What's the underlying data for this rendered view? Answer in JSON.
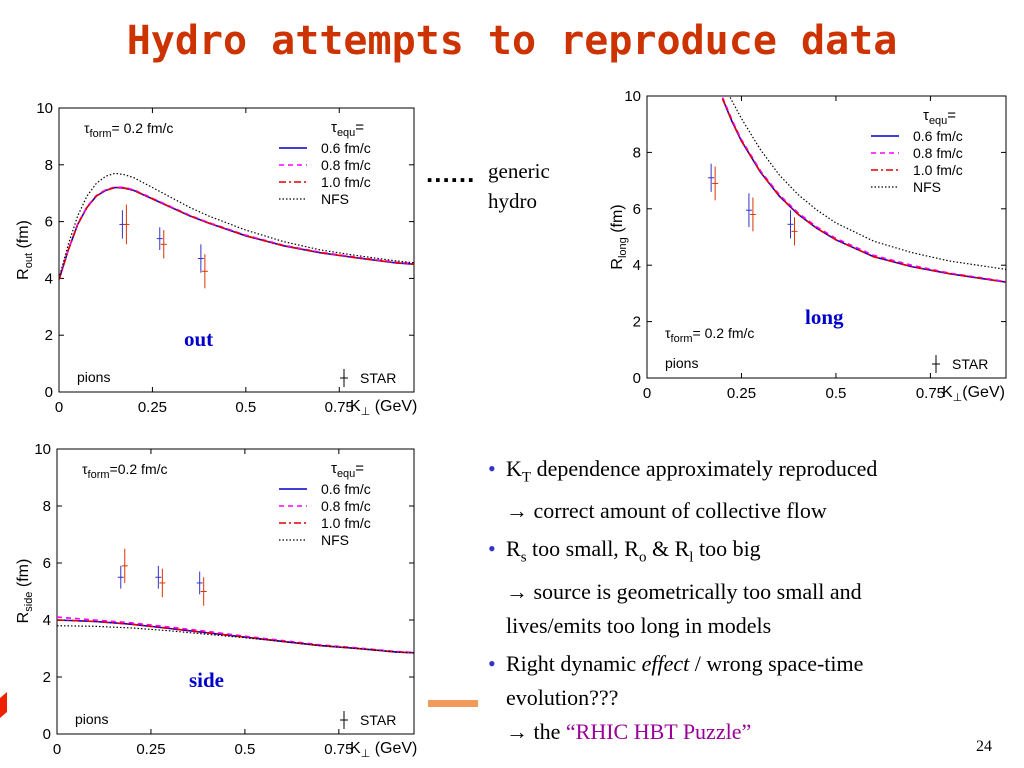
{
  "slide": {
    "title": "Hydro attempts to reproduce data",
    "generic_dots": "......",
    "generic_line1": "generic",
    "generic_line2": "hydro",
    "page_number": "24",
    "bullets": [
      {
        "a": "K",
        "a_sub": "T",
        "b": " dependence approximately reproduced",
        "line2": "→ correct amount of collective flow"
      },
      {
        "a": "R",
        "a_sub": "s",
        "b": " too small, R",
        "b_sub": "o",
        "c": " & R",
        "c_sub": "l",
        "d": " too big",
        "line2": "→ source is geometrically too small and",
        "line3": "lives/emits too long in models"
      },
      {
        "a": "Right dynamic ",
        "em": "effect",
        "b": " / wrong space-time",
        "line2": "evolution???",
        "line3_pre": "→ the ",
        "line3_quote": "“RHIC HBT Puzzle”"
      }
    ]
  },
  "chart_data": [
    {
      "type": "line",
      "panel": "out",
      "xlabel": "K⊥ (GeV)",
      "ylabel": "Rout (fm)",
      "xlim": [
        0,
        0.95
      ],
      "ylim": [
        0,
        10
      ],
      "x_ticks": [
        "0",
        "0.25",
        "0.5",
        "0.75"
      ],
      "y_ticks": [
        "0",
        "2",
        "4",
        "6",
        "8",
        "10"
      ],
      "tau_form_label": "τform= 0.2 fm/c",
      "tau_equ_label": "τequ=",
      "particle_label": "pions",
      "star_label": "STAR",
      "panel_label": "out",
      "legend_position": "top-right",
      "series": [
        {
          "name": "0.6 fm/c",
          "x": [
            0,
            0.025,
            0.05,
            0.075,
            0.1,
            0.125,
            0.15,
            0.175,
            0.2,
            0.25,
            0.3,
            0.35,
            0.4,
            0.5,
            0.6,
            0.7,
            0.8,
            0.9,
            0.95
          ],
          "y": [
            3.95,
            5.0,
            5.9,
            6.5,
            6.9,
            7.1,
            7.2,
            7.18,
            7.1,
            6.8,
            6.5,
            6.2,
            5.95,
            5.5,
            5.15,
            4.9,
            4.72,
            4.55,
            4.5
          ]
        },
        {
          "name": "0.8 fm/c",
          "x": [
            0,
            0.025,
            0.05,
            0.075,
            0.1,
            0.125,
            0.15,
            0.175,
            0.2,
            0.25,
            0.3,
            0.35,
            0.4,
            0.5,
            0.6,
            0.7,
            0.8,
            0.9,
            0.95
          ],
          "y": [
            3.95,
            5.0,
            5.92,
            6.52,
            6.92,
            7.12,
            7.22,
            7.2,
            7.12,
            6.82,
            6.52,
            6.22,
            5.97,
            5.52,
            5.17,
            4.92,
            4.74,
            4.57,
            4.52
          ]
        },
        {
          "name": "1.0 fm/c",
          "x": [
            0,
            0.025,
            0.05,
            0.075,
            0.1,
            0.125,
            0.15,
            0.175,
            0.2,
            0.25,
            0.3,
            0.35,
            0.4,
            0.5,
            0.6,
            0.7,
            0.8,
            0.9,
            0.95
          ],
          "y": [
            3.95,
            5.0,
            5.9,
            6.5,
            6.9,
            7.1,
            7.2,
            7.18,
            7.1,
            6.8,
            6.5,
            6.2,
            5.95,
            5.5,
            5.15,
            4.9,
            4.72,
            4.55,
            4.5
          ]
        },
        {
          "name": "NFS",
          "x": [
            0,
            0.025,
            0.05,
            0.075,
            0.1,
            0.125,
            0.15,
            0.175,
            0.2,
            0.25,
            0.3,
            0.35,
            0.4,
            0.5,
            0.6,
            0.7,
            0.8,
            0.9,
            0.95
          ],
          "y": [
            4.0,
            5.2,
            6.2,
            6.9,
            7.35,
            7.6,
            7.7,
            7.65,
            7.55,
            7.2,
            6.85,
            6.5,
            6.2,
            5.7,
            5.3,
            5.0,
            4.8,
            4.62,
            4.55
          ]
        }
      ],
      "data_points": [
        {
          "x": 0.175,
          "blue": 5.9,
          "blue_err": 0.5,
          "red": 5.9,
          "red_err": 0.7
        },
        {
          "x": 0.275,
          "blue": 5.4,
          "blue_err": 0.4,
          "red": 5.2,
          "red_err": 0.5
        },
        {
          "x": 0.385,
          "blue": 4.7,
          "blue_err": 0.5,
          "red": 4.25,
          "red_err": 0.6
        }
      ]
    },
    {
      "type": "line",
      "panel": "long",
      "xlabel": "K⊥(GeV)",
      "ylabel": "Rlong (fm)",
      "xlim": [
        0,
        0.95
      ],
      "ylim": [
        0,
        10
      ],
      "x_ticks": [
        "0",
        "0.25",
        "0.5",
        "0.75"
      ],
      "y_ticks": [
        "0",
        "2",
        "4",
        "6",
        "8",
        "10"
      ],
      "tau_form_label": "τform= 0.2 fm/c",
      "tau_equ_label": "τequ=",
      "particle_label": "pions",
      "star_label": "STAR",
      "panel_label": "long",
      "legend_position": "top-right",
      "series": [
        {
          "name": "0.6 fm/c",
          "x": [
            0.2,
            0.225,
            0.25,
            0.3,
            0.35,
            0.4,
            0.45,
            0.5,
            0.6,
            0.7,
            0.8,
            0.9,
            0.95
          ],
          "y": [
            9.9,
            9.1,
            8.4,
            7.3,
            6.45,
            5.8,
            5.3,
            4.9,
            4.3,
            3.95,
            3.7,
            3.5,
            3.4
          ]
        },
        {
          "name": "0.8 fm/c",
          "x": [
            0.2,
            0.225,
            0.25,
            0.3,
            0.35,
            0.4,
            0.45,
            0.5,
            0.6,
            0.7,
            0.8,
            0.9,
            0.95
          ],
          "y": [
            9.95,
            9.15,
            8.45,
            7.35,
            6.5,
            5.85,
            5.35,
            4.95,
            4.35,
            4.0,
            3.72,
            3.52,
            3.42
          ]
        },
        {
          "name": "1.0 fm/c",
          "x": [
            0.2,
            0.225,
            0.25,
            0.3,
            0.35,
            0.4,
            0.45,
            0.5,
            0.6,
            0.7,
            0.8,
            0.9,
            0.95
          ],
          "y": [
            9.9,
            9.1,
            8.4,
            7.3,
            6.45,
            5.8,
            5.3,
            4.9,
            4.3,
            3.95,
            3.7,
            3.5,
            3.4
          ]
        },
        {
          "name": "NFS",
          "x": [
            0.22,
            0.25,
            0.3,
            0.35,
            0.4,
            0.45,
            0.5,
            0.6,
            0.7,
            0.8,
            0.9,
            0.95
          ],
          "y": [
            9.95,
            9.2,
            8.1,
            7.2,
            6.5,
            5.95,
            5.5,
            4.85,
            4.45,
            4.15,
            3.95,
            3.85
          ]
        }
      ],
      "data_points": [
        {
          "x": 0.175,
          "blue": 7.1,
          "blue_err": 0.5,
          "red": 6.9,
          "red_err": 0.6
        },
        {
          "x": 0.275,
          "blue": 5.95,
          "blue_err": 0.6,
          "red": 5.8,
          "red_err": 0.6
        },
        {
          "x": 0.385,
          "blue": 5.45,
          "blue_err": 0.5,
          "red": 5.2,
          "red_err": 0.5
        }
      ]
    },
    {
      "type": "line",
      "panel": "side",
      "xlabel": "K⊥ (GeV)",
      "ylabel": "Rside (fm)",
      "xlim": [
        0,
        0.95
      ],
      "ylim": [
        0,
        10
      ],
      "x_ticks": [
        "0",
        "0.25",
        "0.5",
        "0.75"
      ],
      "y_ticks": [
        "0",
        "2",
        "4",
        "6",
        "8",
        "10"
      ],
      "tau_form_label": "τform=0.2 fm/c",
      "tau_equ_label": "τequ=",
      "particle_label": "pions",
      "star_label": "STAR",
      "panel_label": "side",
      "legend_position": "top-right",
      "series": [
        {
          "name": "0.6 fm/c",
          "x": [
            0,
            0.1,
            0.2,
            0.3,
            0.4,
            0.5,
            0.6,
            0.7,
            0.8,
            0.9,
            0.95
          ],
          "y": [
            4.0,
            3.95,
            3.85,
            3.7,
            3.55,
            3.4,
            3.25,
            3.1,
            3.0,
            2.88,
            2.85
          ]
        },
        {
          "name": "0.8 fm/c",
          "x": [
            0,
            0.1,
            0.2,
            0.3,
            0.4,
            0.5,
            0.6,
            0.7,
            0.8,
            0.9,
            0.95
          ],
          "y": [
            4.1,
            4.0,
            3.9,
            3.75,
            3.6,
            3.43,
            3.28,
            3.13,
            3.02,
            2.9,
            2.86
          ]
        },
        {
          "name": "1.0 fm/c",
          "x": [
            0,
            0.1,
            0.2,
            0.3,
            0.4,
            0.5,
            0.6,
            0.7,
            0.8,
            0.9,
            0.95
          ],
          "y": [
            4.0,
            3.95,
            3.85,
            3.7,
            3.55,
            3.4,
            3.25,
            3.1,
            3.0,
            2.88,
            2.85
          ]
        },
        {
          "name": "NFS",
          "x": [
            0,
            0.1,
            0.2,
            0.3,
            0.4,
            0.5,
            0.6,
            0.7,
            0.8,
            0.9,
            0.95
          ],
          "y": [
            3.8,
            3.78,
            3.72,
            3.62,
            3.5,
            3.38,
            3.25,
            3.1,
            3.0,
            2.88,
            2.85
          ]
        }
      ],
      "data_points": [
        {
          "x": 0.175,
          "blue": 5.5,
          "blue_err": 0.4,
          "red": 5.9,
          "red_err": 0.6
        },
        {
          "x": 0.275,
          "blue": 5.5,
          "blue_err": 0.4,
          "red": 5.3,
          "red_err": 0.5
        },
        {
          "x": 0.385,
          "blue": 5.3,
          "blue_err": 0.4,
          "red": 5.0,
          "red_err": 0.5
        }
      ]
    }
  ]
}
